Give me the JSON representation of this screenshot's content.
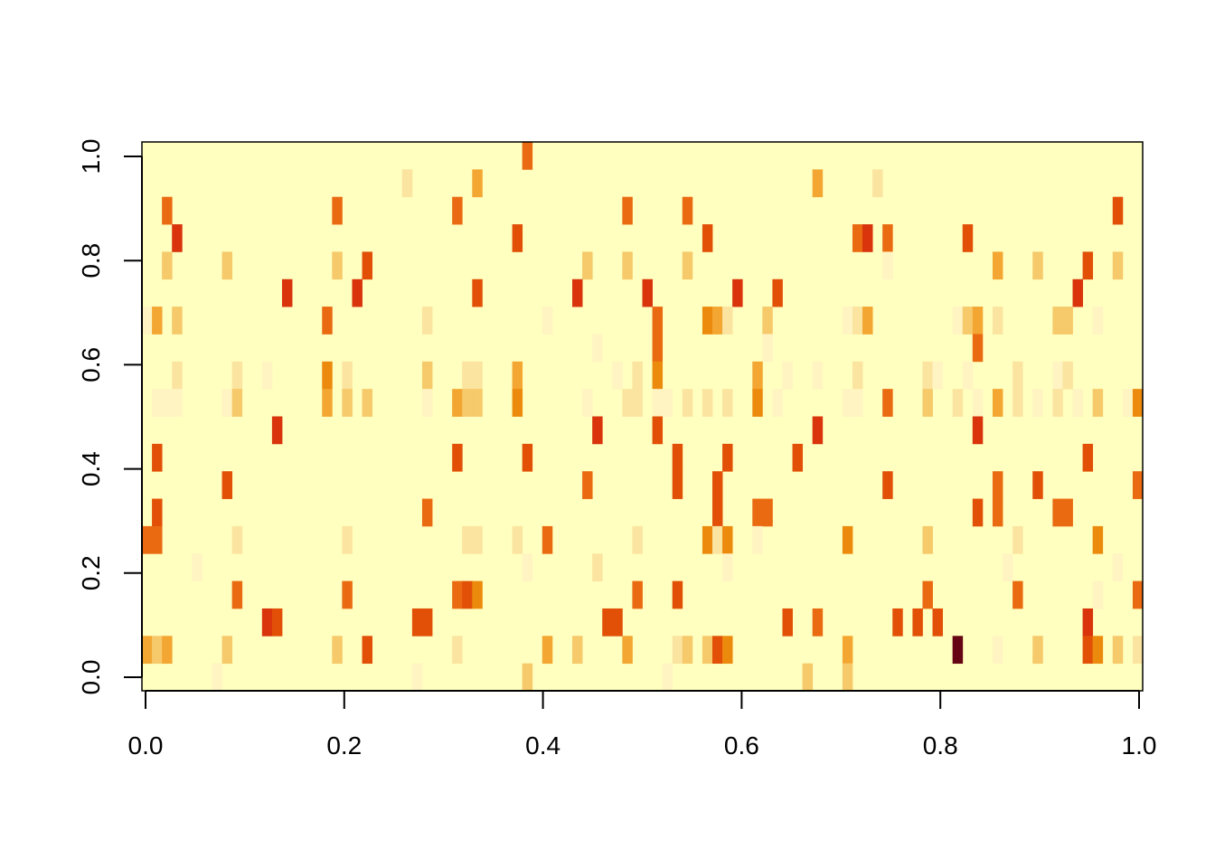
{
  "chart_data": {
    "type": "heatmap",
    "title": "",
    "xlabel": "",
    "ylabel": "",
    "xlim": [
      0,
      1
    ],
    "ylim": [
      0,
      1
    ],
    "x_ticks": [
      "0.0",
      "0.2",
      "0.4",
      "0.6",
      "0.8",
      "1.0"
    ],
    "y_ticks": [
      "0.0",
      "0.2",
      "0.4",
      "0.6",
      "0.8",
      "1.0"
    ],
    "colors": {
      "background": "#FFFFBF",
      "level_1": "#FFF4C2",
      "level_2": "#FBE4A0",
      "level_3": "#F6C96A",
      "level_4": "#F3A632",
      "level_5": "#EC8A0E",
      "level_6": "#EA6A12",
      "level_7": "#E25008",
      "level_8": "#D9340C",
      "level_9": "#660514"
    },
    "grid": {
      "columns": 100,
      "rows": 20,
      "note_cells": "cells listed as [column index 0-99, row index 0-19 from bottom, intensity level 1-9]; all other cells are background",
      "cells": [
        [
          38,
          19,
          6
        ],
        [
          26,
          18,
          2
        ],
        [
          33,
          18,
          4
        ],
        [
          67,
          18,
          4
        ],
        [
          73,
          18,
          2
        ],
        [
          2,
          17,
          6
        ],
        [
          19,
          17,
          6
        ],
        [
          31,
          17,
          6
        ],
        [
          48,
          17,
          6
        ],
        [
          54,
          17,
          6
        ],
        [
          97,
          17,
          7
        ],
        [
          3,
          16,
          8
        ],
        [
          37,
          16,
          7
        ],
        [
          56,
          16,
          7
        ],
        [
          71,
          16,
          6
        ],
        [
          72,
          16,
          8
        ],
        [
          74,
          16,
          6
        ],
        [
          82,
          16,
          7
        ],
        [
          2,
          15,
          3
        ],
        [
          8,
          15,
          3
        ],
        [
          19,
          15,
          3
        ],
        [
          22,
          15,
          7
        ],
        [
          44,
          15,
          3
        ],
        [
          48,
          15,
          3
        ],
        [
          54,
          15,
          3
        ],
        [
          74,
          15,
          1
        ],
        [
          85,
          15,
          4
        ],
        [
          89,
          15,
          3
        ],
        [
          94,
          15,
          7
        ],
        [
          97,
          15,
          3
        ],
        [
          14,
          14,
          8
        ],
        [
          21,
          14,
          8
        ],
        [
          33,
          14,
          7
        ],
        [
          43,
          14,
          8
        ],
        [
          50,
          14,
          8
        ],
        [
          59,
          14,
          8
        ],
        [
          63,
          14,
          7
        ],
        [
          93,
          14,
          8
        ],
        [
          0,
          13,
          1
        ],
        [
          1,
          13,
          4
        ],
        [
          3,
          13,
          3
        ],
        [
          18,
          13,
          6
        ],
        [
          28,
          13,
          2
        ],
        [
          40,
          13,
          1
        ],
        [
          51,
          13,
          6
        ],
        [
          56,
          13,
          5
        ],
        [
          57,
          13,
          4
        ],
        [
          58,
          13,
          2
        ],
        [
          62,
          13,
          3
        ],
        [
          70,
          13,
          1
        ],
        [
          71,
          13,
          2
        ],
        [
          72,
          13,
          4
        ],
        [
          81,
          13,
          1
        ],
        [
          82,
          13,
          3
        ],
        [
          83,
          13,
          4
        ],
        [
          85,
          13,
          2
        ],
        [
          91,
          13,
          3
        ],
        [
          92,
          13,
          3
        ],
        [
          95,
          13,
          1
        ],
        [
          45,
          12,
          1
        ],
        [
          51,
          12,
          6
        ],
        [
          62,
          12,
          1
        ],
        [
          83,
          12,
          6
        ],
        [
          3,
          11,
          2
        ],
        [
          9,
          11,
          2
        ],
        [
          12,
          11,
          1
        ],
        [
          18,
          11,
          5
        ],
        [
          20,
          11,
          2
        ],
        [
          28,
          11,
          3
        ],
        [
          32,
          11,
          2
        ],
        [
          33,
          11,
          2
        ],
        [
          37,
          11,
          4
        ],
        [
          47,
          11,
          1
        ],
        [
          49,
          11,
          2
        ],
        [
          51,
          11,
          5
        ],
        [
          61,
          11,
          4
        ],
        [
          64,
          11,
          1
        ],
        [
          67,
          11,
          1
        ],
        [
          71,
          11,
          2
        ],
        [
          78,
          11,
          2
        ],
        [
          79,
          11,
          1
        ],
        [
          82,
          11,
          1
        ],
        [
          87,
          11,
          2
        ],
        [
          91,
          11,
          1
        ],
        [
          92,
          11,
          2
        ],
        [
          1,
          10,
          1
        ],
        [
          2,
          10,
          1
        ],
        [
          3,
          10,
          1
        ],
        [
          8,
          10,
          1
        ],
        [
          9,
          10,
          3
        ],
        [
          18,
          10,
          4
        ],
        [
          20,
          10,
          3
        ],
        [
          22,
          10,
          3
        ],
        [
          28,
          10,
          1
        ],
        [
          31,
          10,
          4
        ],
        [
          32,
          10,
          3
        ],
        [
          33,
          10,
          3
        ],
        [
          37,
          10,
          5
        ],
        [
          44,
          10,
          1
        ],
        [
          48,
          10,
          2
        ],
        [
          49,
          10,
          2
        ],
        [
          51,
          10,
          1
        ],
        [
          52,
          10,
          1
        ],
        [
          54,
          10,
          2
        ],
        [
          56,
          10,
          2
        ],
        [
          58,
          10,
          2
        ],
        [
          61,
          10,
          5
        ],
        [
          63,
          10,
          1
        ],
        [
          70,
          10,
          1
        ],
        [
          71,
          10,
          1
        ],
        [
          74,
          10,
          6
        ],
        [
          78,
          10,
          3
        ],
        [
          81,
          10,
          2
        ],
        [
          83,
          10,
          1
        ],
        [
          85,
          10,
          4
        ],
        [
          87,
          10,
          2
        ],
        [
          89,
          10,
          1
        ],
        [
          91,
          10,
          2
        ],
        [
          93,
          10,
          1
        ],
        [
          95,
          10,
          3
        ],
        [
          98,
          10,
          1
        ],
        [
          99,
          10,
          5
        ],
        [
          13,
          9,
          8
        ],
        [
          45,
          9,
          8
        ],
        [
          51,
          9,
          7
        ],
        [
          67,
          9,
          8
        ],
        [
          83,
          9,
          8
        ],
        [
          1,
          8,
          7
        ],
        [
          31,
          8,
          7
        ],
        [
          38,
          8,
          7
        ],
        [
          53,
          8,
          7
        ],
        [
          58,
          8,
          7
        ],
        [
          65,
          8,
          7
        ],
        [
          94,
          8,
          7
        ],
        [
          8,
          7,
          7
        ],
        [
          44,
          7,
          6
        ],
        [
          53,
          7,
          7
        ],
        [
          57,
          7,
          7
        ],
        [
          74,
          7,
          7
        ],
        [
          85,
          7,
          6
        ],
        [
          89,
          7,
          7
        ],
        [
          99,
          7,
          6
        ],
        [
          1,
          6,
          7
        ],
        [
          28,
          6,
          6
        ],
        [
          57,
          6,
          7
        ],
        [
          61,
          6,
          6
        ],
        [
          62,
          6,
          6
        ],
        [
          83,
          6,
          7
        ],
        [
          85,
          6,
          6
        ],
        [
          91,
          6,
          6
        ],
        [
          92,
          6,
          6
        ],
        [
          0,
          5,
          6
        ],
        [
          1,
          5,
          6
        ],
        [
          9,
          5,
          2
        ],
        [
          20,
          5,
          2
        ],
        [
          32,
          5,
          2
        ],
        [
          33,
          5,
          2
        ],
        [
          37,
          5,
          2
        ],
        [
          40,
          5,
          6
        ],
        [
          49,
          5,
          2
        ],
        [
          56,
          5,
          5
        ],
        [
          57,
          5,
          2
        ],
        [
          58,
          5,
          5
        ],
        [
          61,
          5,
          1
        ],
        [
          70,
          5,
          5
        ],
        [
          78,
          5,
          3
        ],
        [
          87,
          5,
          2
        ],
        [
          95,
          5,
          5
        ],
        [
          5,
          4,
          1
        ],
        [
          38,
          4,
          1
        ],
        [
          45,
          4,
          2
        ],
        [
          58,
          4,
          1
        ],
        [
          86,
          4,
          1
        ],
        [
          97,
          4,
          1
        ],
        [
          9,
          3,
          6
        ],
        [
          20,
          3,
          6
        ],
        [
          31,
          3,
          6
        ],
        [
          32,
          3,
          7
        ],
        [
          33,
          3,
          5
        ],
        [
          49,
          3,
          6
        ],
        [
          53,
          3,
          7
        ],
        [
          78,
          3,
          6
        ],
        [
          87,
          3,
          6
        ],
        [
          95,
          3,
          1
        ],
        [
          99,
          3,
          6
        ],
        [
          12,
          2,
          8
        ],
        [
          13,
          2,
          7
        ],
        [
          27,
          2,
          7
        ],
        [
          28,
          2,
          7
        ],
        [
          46,
          2,
          7
        ],
        [
          47,
          2,
          7
        ],
        [
          64,
          2,
          7
        ],
        [
          67,
          2,
          6
        ],
        [
          75,
          2,
          7
        ],
        [
          77,
          2,
          7
        ],
        [
          79,
          2,
          7
        ],
        [
          94,
          2,
          8
        ],
        [
          0,
          1,
          4
        ],
        [
          1,
          1,
          3
        ],
        [
          2,
          1,
          4
        ],
        [
          8,
          1,
          3
        ],
        [
          19,
          1,
          3
        ],
        [
          22,
          1,
          7
        ],
        [
          31,
          1,
          2
        ],
        [
          40,
          1,
          4
        ],
        [
          43,
          1,
          3
        ],
        [
          48,
          1,
          4
        ],
        [
          53,
          1,
          2
        ],
        [
          54,
          1,
          3
        ],
        [
          56,
          1,
          3
        ],
        [
          57,
          1,
          7
        ],
        [
          58,
          1,
          5
        ],
        [
          70,
          1,
          4
        ],
        [
          81,
          1,
          9
        ],
        [
          85,
          1,
          1
        ],
        [
          89,
          1,
          3
        ],
        [
          94,
          1,
          7
        ],
        [
          95,
          1,
          5
        ],
        [
          97,
          1,
          3
        ],
        [
          99,
          1,
          2
        ],
        [
          7,
          0,
          1
        ],
        [
          27,
          0,
          1
        ],
        [
          38,
          0,
          3
        ],
        [
          52,
          0,
          1
        ],
        [
          66,
          0,
          3
        ],
        [
          70,
          0,
          3
        ]
      ]
    }
  }
}
